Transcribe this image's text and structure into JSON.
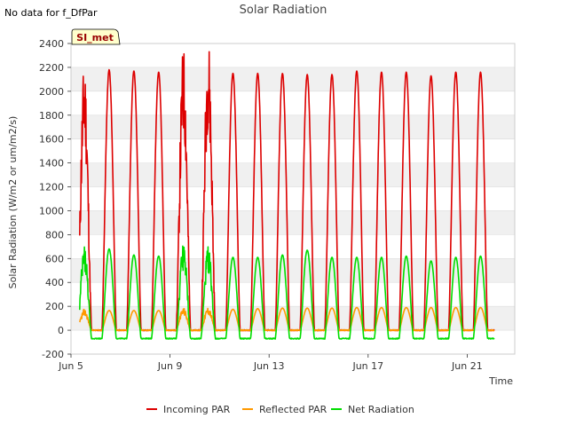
{
  "chart_data": {
    "type": "line",
    "title": "Solar Radiation",
    "corner_note": "No data for f_DfPar",
    "site_tag": "SI_met",
    "xlabel": "Time",
    "ylabel": "Solar Radiation (W/m2 or um/m2/s)",
    "xlim": [
      "2024-06-05",
      "2024-06-23"
    ],
    "ylim": [
      -200,
      2400
    ],
    "yticks": [
      -200,
      0,
      200,
      400,
      600,
      800,
      1000,
      1200,
      1400,
      1600,
      1800,
      2000,
      2200,
      2400
    ],
    "xtick_labels": [
      "Jun 5",
      "Jun 9",
      "Jun 13",
      "Jun 17",
      "Jun 21"
    ],
    "x_days": [
      "Jun 5",
      "Jun 6",
      "Jun 7",
      "Jun 8",
      "Jun 9",
      "Jun 10",
      "Jun 11",
      "Jun 12",
      "Jun 13",
      "Jun 14",
      "Jun 15",
      "Jun 16",
      "Jun 17",
      "Jun 18",
      "Jun 19",
      "Jun 20",
      "Jun 21",
      "Jun 22"
    ],
    "grid_bands": true,
    "legend_placement": "bottom-center",
    "series": [
      {
        "name": "Incoming PAR",
        "color": "#dd0000",
        "daily_peaks": [
          2050,
          2180,
          2170,
          2160,
          2170,
          2250,
          2150,
          2150,
          2150,
          2140,
          2140,
          2170,
          2160,
          2160,
          2130,
          2160,
          2160
        ],
        "night_value": 0
      },
      {
        "name": "Reflected PAR",
        "color": "#ff9900",
        "daily_peaks": [
          160,
          165,
          165,
          165,
          170,
          175,
          175,
          180,
          185,
          185,
          185,
          190,
          190,
          190,
          190,
          190,
          190
        ],
        "night_value": 0
      },
      {
        "name": "Net Radiation",
        "color": "#00dd00",
        "daily_peaks": [
          650,
          680,
          630,
          620,
          670,
          640,
          610,
          610,
          630,
          670,
          610,
          610,
          610,
          620,
          580,
          610,
          620
        ],
        "night_value": -70
      }
    ]
  }
}
